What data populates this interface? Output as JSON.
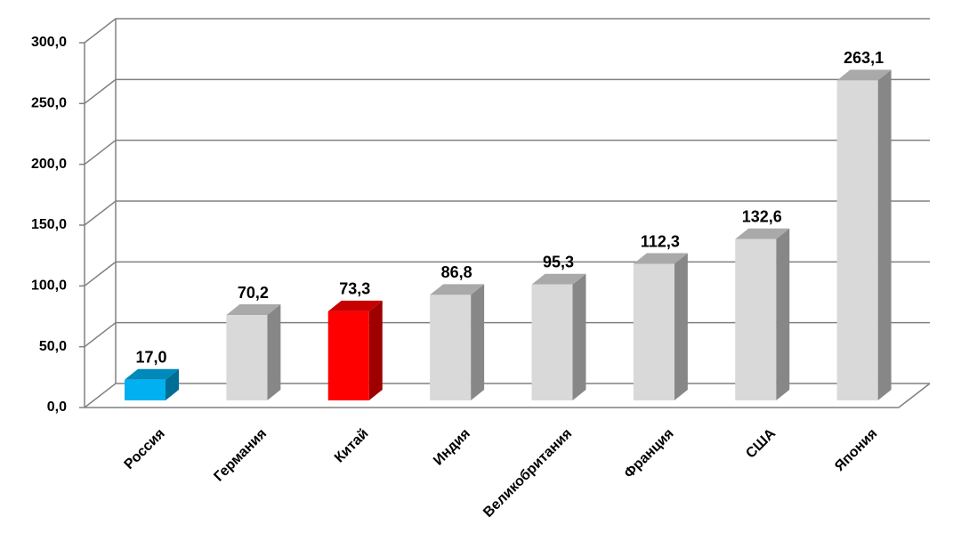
{
  "chart_data": {
    "type": "bar3d",
    "categories": [
      "Россия",
      "Германия",
      "Китай",
      "Индия",
      "Великобритания",
      "Франция",
      "США",
      "Япония"
    ],
    "values": [
      17.0,
      70.2,
      73.3,
      86.8,
      95.3,
      112.3,
      132.6,
      263.1
    ],
    "value_labels": [
      "17,0",
      "70,2",
      "73,3",
      "86,8",
      "95,3",
      "112,3",
      "132,6",
      "263,1"
    ],
    "colors": [
      "#00b0f0",
      "#d9d9d9",
      "#ff0000",
      "#d9d9d9",
      "#d9d9d9",
      "#d9d9d9",
      "#d9d9d9",
      "#d9d9d9"
    ],
    "ylim": [
      0,
      300
    ],
    "yticks": [
      {
        "value": 0,
        "label": "0,0"
      },
      {
        "value": 50,
        "label": "50,0"
      },
      {
        "value": 100,
        "label": "100,0"
      },
      {
        "value": 150,
        "label": "150,0"
      },
      {
        "value": 200,
        "label": "200,0"
      },
      {
        "value": 250,
        "label": "250,0"
      },
      {
        "value": 300,
        "label": "300,0"
      }
    ],
    "grid": true
  }
}
